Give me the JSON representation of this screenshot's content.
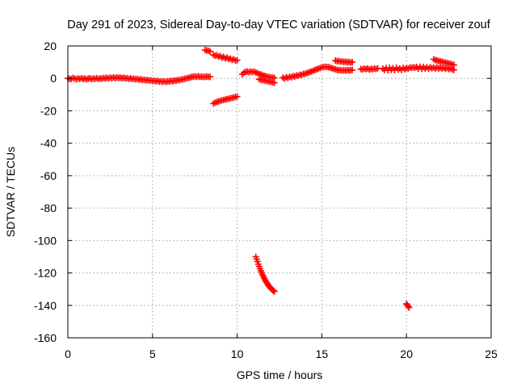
{
  "chart_data": {
    "type": "scatter",
    "title": "Day 291 of 2023, Sidereal Day-to-day VTEC variation (SDTVAR) for receiver zouf",
    "xlabel": "GPS time / hours",
    "ylabel": "SDTVAR / TECUs",
    "xlim": [
      0,
      25
    ],
    "ylim": [
      -160,
      20
    ],
    "x_ticks": [
      0,
      5,
      10,
      15,
      20,
      25
    ],
    "y_ticks": [
      20,
      0,
      -20,
      -40,
      -60,
      -80,
      -100,
      -120,
      -140,
      -160
    ],
    "grid": true,
    "marker": "plus",
    "color": "#ff0000",
    "series": [
      {
        "name": "SDTVAR",
        "points": [
          [
            0.0,
            0.0
          ],
          [
            0.1,
            -0.2
          ],
          [
            0.2,
            -0.4
          ],
          [
            0.3,
            0.3
          ],
          [
            0.4,
            -0.1
          ],
          [
            0.5,
            -0.5
          ],
          [
            0.6,
            0.0
          ],
          [
            0.7,
            -0.3
          ],
          [
            0.8,
            0.2
          ],
          [
            0.9,
            -0.4
          ],
          [
            1.0,
            0.0
          ],
          [
            1.1,
            -0.6
          ],
          [
            1.2,
            -0.2
          ],
          [
            1.3,
            0.1
          ],
          [
            1.4,
            -0.5
          ],
          [
            1.5,
            -0.1
          ],
          [
            1.6,
            -0.3
          ],
          [
            1.7,
            0.2
          ],
          [
            1.8,
            -0.4
          ],
          [
            1.9,
            0.0
          ],
          [
            2.0,
            -0.2
          ],
          [
            2.1,
            0.3
          ],
          [
            2.2,
            -0.1
          ],
          [
            2.3,
            0.4
          ],
          [
            2.4,
            0.0
          ],
          [
            2.5,
            0.5
          ],
          [
            2.6,
            0.1
          ],
          [
            2.7,
            0.6
          ],
          [
            2.8,
            0.2
          ],
          [
            2.9,
            0.7
          ],
          [
            3.0,
            0.3
          ],
          [
            3.1,
            0.5
          ],
          [
            3.2,
            0.1
          ],
          [
            3.3,
            0.4
          ],
          [
            3.4,
            0.0
          ],
          [
            3.5,
            0.2
          ],
          [
            3.6,
            -0.3
          ],
          [
            3.7,
            0.1
          ],
          [
            3.8,
            -0.4
          ],
          [
            3.9,
            -0.2
          ],
          [
            4.0,
            -0.6
          ],
          [
            4.1,
            -0.3
          ],
          [
            4.2,
            -0.8
          ],
          [
            4.3,
            -0.5
          ],
          [
            4.4,
            -1.0
          ],
          [
            4.5,
            -0.8
          ],
          [
            4.6,
            -1.2
          ],
          [
            4.7,
            -1.0
          ],
          [
            4.8,
            -1.4
          ],
          [
            4.9,
            -1.2
          ],
          [
            5.0,
            -1.6
          ],
          [
            5.1,
            -1.4
          ],
          [
            5.2,
            -1.8
          ],
          [
            5.3,
            -1.5
          ],
          [
            5.4,
            -2.0
          ],
          [
            5.5,
            -1.7
          ],
          [
            5.6,
            -2.1
          ],
          [
            5.7,
            -1.8
          ],
          [
            5.8,
            -2.2
          ],
          [
            5.9,
            -1.8
          ],
          [
            6.0,
            -1.9
          ],
          [
            6.1,
            -1.5
          ],
          [
            6.2,
            -1.7
          ],
          [
            6.3,
            -1.3
          ],
          [
            6.4,
            -1.4
          ],
          [
            6.5,
            -1.0
          ],
          [
            6.6,
            -1.1
          ],
          [
            6.7,
            -0.7
          ],
          [
            6.8,
            -0.6
          ],
          [
            6.9,
            -0.2
          ],
          [
            7.0,
            -0.1
          ],
          [
            7.1,
            0.3
          ],
          [
            7.2,
            0.5
          ],
          [
            7.3,
            0.9
          ],
          [
            7.4,
            1.0
          ],
          [
            7.5,
            1.2
          ],
          [
            7.6,
            1.0
          ],
          [
            7.7,
            1.3
          ],
          [
            7.8,
            0.9
          ],
          [
            7.9,
            1.1
          ],
          [
            8.0,
            0.8
          ],
          [
            8.1,
            1.0
          ],
          [
            8.2,
            1.1
          ],
          [
            8.3,
            0.9
          ],
          [
            8.4,
            1.0
          ],
          [
            8.1,
            17.5
          ],
          [
            8.2,
            17.2
          ],
          [
            8.3,
            17.0
          ],
          [
            8.4,
            16.6
          ],
          [
            8.6,
            14.5
          ],
          [
            8.7,
            14.0
          ],
          [
            8.8,
            14.3
          ],
          [
            8.9,
            13.4
          ],
          [
            9.0,
            13.8
          ],
          [
            9.1,
            12.8
          ],
          [
            9.2,
            13.3
          ],
          [
            9.3,
            12.3
          ],
          [
            9.4,
            12.8
          ],
          [
            9.5,
            11.9
          ],
          [
            9.6,
            12.2
          ],
          [
            9.7,
            11.4
          ],
          [
            9.8,
            11.8
          ],
          [
            9.9,
            11.0
          ],
          [
            10.0,
            11.2
          ],
          [
            8.6,
            -15.5
          ],
          [
            8.7,
            -15.0
          ],
          [
            8.8,
            -14.5
          ],
          [
            8.9,
            -14.2
          ],
          [
            9.0,
            -13.8
          ],
          [
            9.1,
            -13.5
          ],
          [
            9.2,
            -13.3
          ],
          [
            9.3,
            -13.0
          ],
          [
            9.4,
            -12.8
          ],
          [
            9.5,
            -12.5
          ],
          [
            9.6,
            -12.3
          ],
          [
            9.7,
            -12.0
          ],
          [
            9.8,
            -11.8
          ],
          [
            9.9,
            -11.5
          ],
          [
            10.0,
            -11.2
          ],
          [
            10.3,
            2.5
          ],
          [
            10.4,
            3.5
          ],
          [
            10.5,
            4.0
          ],
          [
            10.6,
            4.2
          ],
          [
            10.7,
            3.8
          ],
          [
            10.8,
            4.3
          ],
          [
            10.9,
            3.9
          ],
          [
            11.0,
            4.2
          ],
          [
            11.1,
            3.6
          ],
          [
            11.2,
            3.3
          ],
          [
            11.3,
            2.7
          ],
          [
            11.4,
            2.5
          ],
          [
            11.5,
            2.0
          ],
          [
            11.6,
            1.6
          ],
          [
            11.7,
            1.2
          ],
          [
            11.8,
            1.0
          ],
          [
            11.9,
            0.8
          ],
          [
            12.0,
            0.6
          ],
          [
            12.1,
            0.5
          ],
          [
            12.2,
            0.3
          ],
          [
            11.3,
            -0.5
          ],
          [
            11.4,
            -0.8
          ],
          [
            11.5,
            -1.0
          ],
          [
            11.6,
            -1.2
          ],
          [
            11.7,
            -1.5
          ],
          [
            11.8,
            -1.7
          ],
          [
            11.9,
            -2.0
          ],
          [
            12.0,
            -2.2
          ],
          [
            12.1,
            -2.5
          ],
          [
            12.2,
            -2.7
          ],
          [
            11.1,
            -110.0
          ],
          [
            11.15,
            -111.5
          ],
          [
            11.2,
            -113.0
          ],
          [
            11.25,
            -114.6
          ],
          [
            11.3,
            -116.0
          ],
          [
            11.35,
            -117.4
          ],
          [
            11.4,
            -118.7
          ],
          [
            11.45,
            -119.9
          ],
          [
            11.5,
            -121.1
          ],
          [
            11.55,
            -122.2
          ],
          [
            11.6,
            -123.3
          ],
          [
            11.65,
            -124.3
          ],
          [
            11.7,
            -125.2
          ],
          [
            11.75,
            -126.1
          ],
          [
            11.8,
            -126.9
          ],
          [
            11.85,
            -127.7
          ],
          [
            11.9,
            -128.4
          ],
          [
            11.95,
            -129.0
          ],
          [
            12.0,
            -129.6
          ],
          [
            12.05,
            -130.1
          ],
          [
            12.1,
            -130.6
          ],
          [
            12.15,
            -131.0
          ],
          [
            12.2,
            -131.4
          ],
          [
            20.0,
            -139.0
          ],
          [
            20.05,
            -139.8
          ],
          [
            20.1,
            -140.6
          ],
          [
            20.15,
            -141.3
          ],
          [
            12.7,
            0.5
          ],
          [
            12.8,
            -0.2
          ],
          [
            12.9,
            0.8
          ],
          [
            13.0,
            0.3
          ],
          [
            13.1,
            1.0
          ],
          [
            13.2,
            0.7
          ],
          [
            13.3,
            1.4
          ],
          [
            13.4,
            1.1
          ],
          [
            13.5,
            1.8
          ],
          [
            13.6,
            1.6
          ],
          [
            13.7,
            2.2
          ],
          [
            13.8,
            2.1
          ],
          [
            13.9,
            2.7
          ],
          [
            14.0,
            2.8
          ],
          [
            14.1,
            3.3
          ],
          [
            14.2,
            3.5
          ],
          [
            14.3,
            4.0
          ],
          [
            14.4,
            4.3
          ],
          [
            14.5,
            4.8
          ],
          [
            14.6,
            5.2
          ],
          [
            14.7,
            5.6
          ],
          [
            14.8,
            6.0
          ],
          [
            14.9,
            6.4
          ],
          [
            15.0,
            6.8
          ],
          [
            15.1,
            7.0
          ],
          [
            15.2,
            7.2
          ],
          [
            15.3,
            7.1
          ],
          [
            15.4,
            6.9
          ],
          [
            15.5,
            6.6
          ],
          [
            15.6,
            6.2
          ],
          [
            15.7,
            5.9
          ],
          [
            15.8,
            5.6
          ],
          [
            15.9,
            5.3
          ],
          [
            16.0,
            5.1
          ],
          [
            16.1,
            5.0
          ],
          [
            16.2,
            4.9
          ],
          [
            16.3,
            5.0
          ],
          [
            16.4,
            4.8
          ],
          [
            16.5,
            5.1
          ],
          [
            16.6,
            4.9
          ],
          [
            16.7,
            5.0
          ],
          [
            16.8,
            5.2
          ],
          [
            15.8,
            11.0
          ],
          [
            15.9,
            10.6
          ],
          [
            16.0,
            10.8
          ],
          [
            16.1,
            10.3
          ],
          [
            16.2,
            10.5
          ],
          [
            16.3,
            10.1
          ],
          [
            16.4,
            10.3
          ],
          [
            16.5,
            9.9
          ],
          [
            16.6,
            10.2
          ],
          [
            16.7,
            9.8
          ],
          [
            16.8,
            10.0
          ],
          [
            17.3,
            5.8
          ],
          [
            17.4,
            5.5
          ],
          [
            17.5,
            6.0
          ],
          [
            17.6,
            5.7
          ],
          [
            17.7,
            6.1
          ],
          [
            17.8,
            5.4
          ],
          [
            17.9,
            5.9
          ],
          [
            18.0,
            5.6
          ],
          [
            18.1,
            6.0
          ],
          [
            18.2,
            5.8
          ],
          [
            18.3,
            6.2
          ],
          [
            18.6,
            6.0
          ],
          [
            18.7,
            5.2
          ],
          [
            18.8,
            6.4
          ],
          [
            18.9,
            5.0
          ],
          [
            19.0,
            6.5
          ],
          [
            19.1,
            5.3
          ],
          [
            19.2,
            6.3
          ],
          [
            19.3,
            5.1
          ],
          [
            19.4,
            6.6
          ],
          [
            19.5,
            5.4
          ],
          [
            19.6,
            6.2
          ],
          [
            19.7,
            5.2
          ],
          [
            19.8,
            6.5
          ],
          [
            19.9,
            5.6
          ],
          [
            20.0,
            6.4
          ],
          [
            20.1,
            6.0
          ],
          [
            20.2,
            6.7
          ],
          [
            20.3,
            6.5
          ],
          [
            20.4,
            6.9
          ],
          [
            20.5,
            6.6
          ],
          [
            20.6,
            7.0
          ],
          [
            20.7,
            6.0
          ],
          [
            20.8,
            7.2
          ],
          [
            20.9,
            5.8
          ],
          [
            21.0,
            7.0
          ],
          [
            21.1,
            6.1
          ],
          [
            21.2,
            6.8
          ],
          [
            21.3,
            5.9
          ],
          [
            21.4,
            6.9
          ],
          [
            21.5,
            6.2
          ],
          [
            21.6,
            6.7
          ],
          [
            21.7,
            6.0
          ],
          [
            21.8,
            6.8
          ],
          [
            21.9,
            6.1
          ],
          [
            22.0,
            6.6
          ],
          [
            22.1,
            6.0
          ],
          [
            22.2,
            6.5
          ],
          [
            22.3,
            5.8
          ],
          [
            22.4,
            6.4
          ],
          [
            22.5,
            5.7
          ],
          [
            22.6,
            6.2
          ],
          [
            22.7,
            5.5
          ],
          [
            22.8,
            5.2
          ],
          [
            21.6,
            11.8
          ],
          [
            21.7,
            11.3
          ],
          [
            21.8,
            11.1
          ],
          [
            21.9,
            10.7
          ],
          [
            22.0,
            10.6
          ],
          [
            22.1,
            10.2
          ],
          [
            22.2,
            10.0
          ],
          [
            22.3,
            9.7
          ],
          [
            22.4,
            9.5
          ],
          [
            22.5,
            9.2
          ],
          [
            22.6,
            9.0
          ],
          [
            22.7,
            8.6
          ],
          [
            22.8,
            8.3
          ]
        ]
      }
    ]
  }
}
